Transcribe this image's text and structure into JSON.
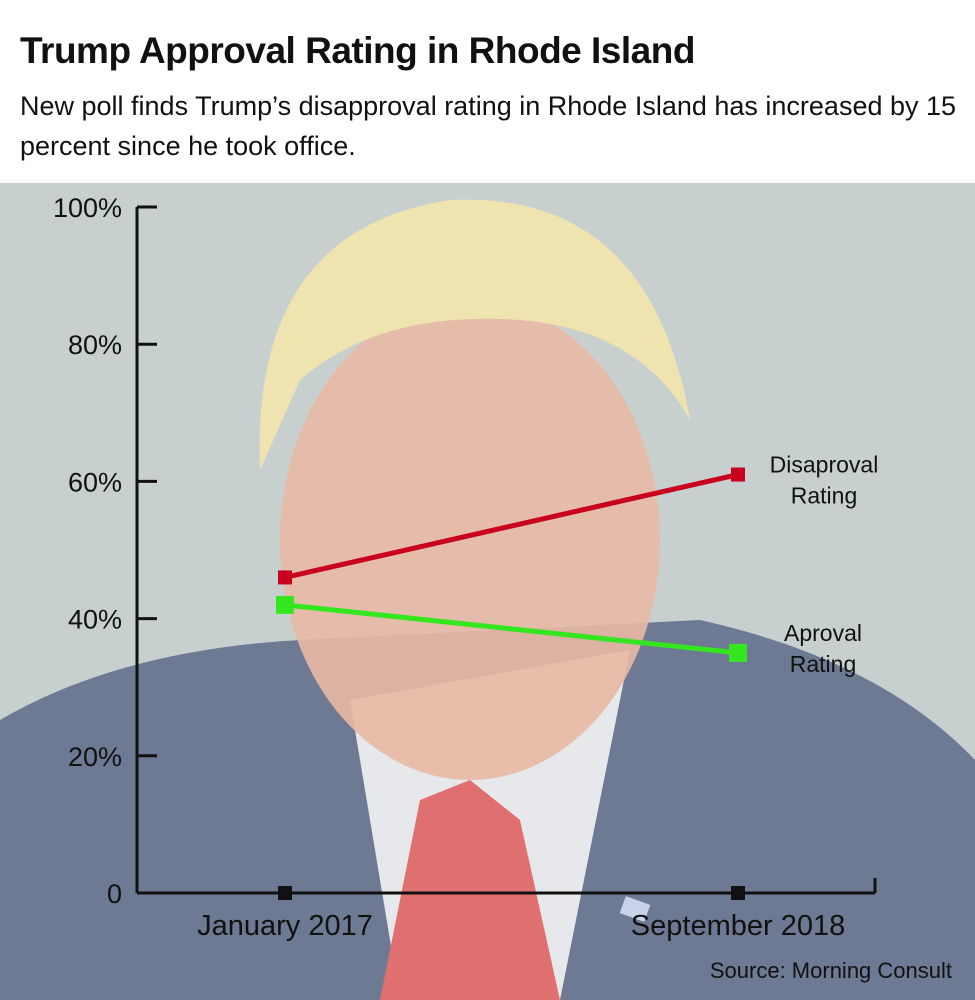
{
  "title": "Trump Approval Rating in Rhode Island",
  "subtitle": "New poll finds Trump’s disapproval rating in Rhode Island has increased by 15 percent since he took office.",
  "source": "Source: Morning Consult",
  "chart_data": {
    "type": "line",
    "categories": [
      "January 2017",
      "September 2018"
    ],
    "series": [
      {
        "name": "Disaproval Rating",
        "label_lines": [
          "Disaproval",
          "Rating"
        ],
        "values": [
          46,
          61
        ],
        "color": "#c8001e"
      },
      {
        "name": "Aproval Rating",
        "label_lines": [
          "Aproval",
          "Rating"
        ],
        "values": [
          42,
          35
        ],
        "color": "#33e61e"
      }
    ],
    "ylim": [
      0,
      100
    ],
    "yticks": [
      0,
      20,
      40,
      60,
      80,
      100
    ],
    "ytick_labels": [
      "0",
      "20%",
      "40%",
      "60%",
      "80%",
      "100%"
    ],
    "grid": false,
    "background": "photo of Donald Trump (faded)"
  }
}
